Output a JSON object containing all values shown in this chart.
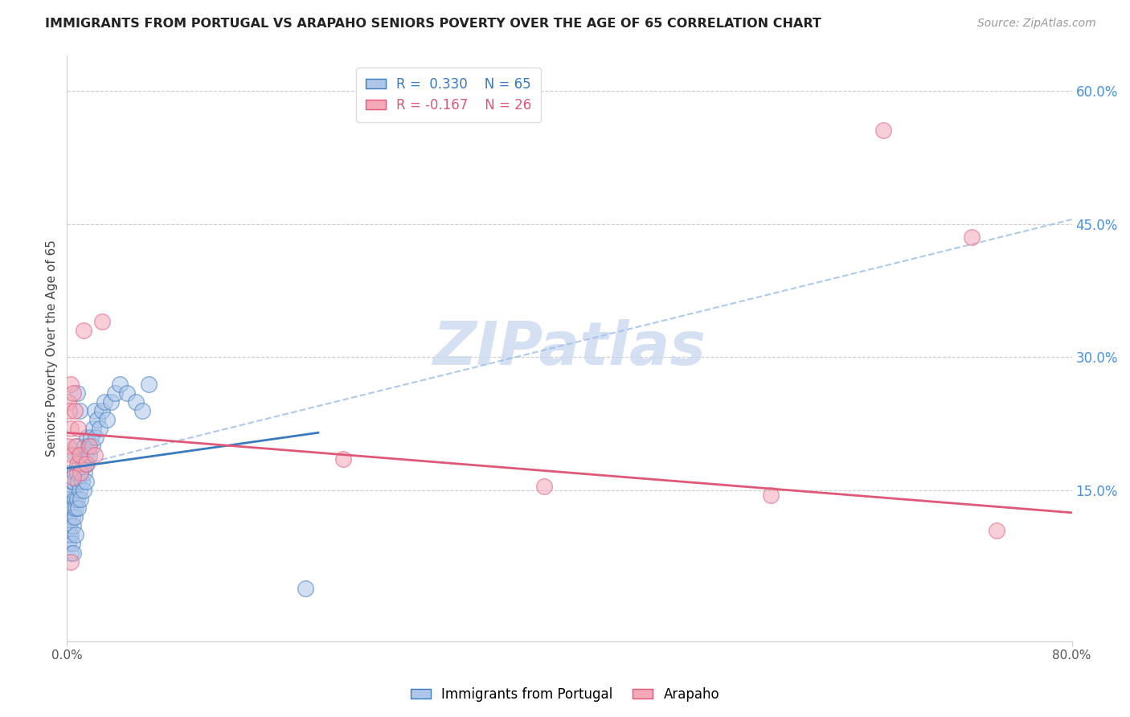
{
  "title": "IMMIGRANTS FROM PORTUGAL VS ARAPAHO SENIORS POVERTY OVER THE AGE OF 65 CORRELATION CHART",
  "source": "Source: ZipAtlas.com",
  "ylabel": "Seniors Poverty Over the Age of 65",
  "xlim": [
    0.0,
    0.8
  ],
  "ylim": [
    -0.02,
    0.64
  ],
  "series1_color": "#aec6e8",
  "series2_color": "#f4a8b8",
  "trendline1_color": "#3a7abf",
  "trendline2_color": "#e05878",
  "dash_color": "#a0c0e8",
  "watermark": "ZIPatlas",
  "watermark_color": "#c8d8f0",
  "legend1_label": "Immigrants from Portugal",
  "legend2_label": "Arapaho",
  "trendline1_x0": 0.0,
  "trendline1_y0": 0.175,
  "trendline1_x1": 0.2,
  "trendline1_y1": 0.215,
  "trendline2_x0": 0.0,
  "trendline2_y0": 0.215,
  "trendline2_x1": 0.8,
  "trendline2_y1": 0.125,
  "dashline_x0": 0.0,
  "dashline_y0": 0.175,
  "dashline_x1": 0.8,
  "dashline_y1": 0.455,
  "series1_x": [
    0.001,
    0.001,
    0.001,
    0.002,
    0.002,
    0.002,
    0.003,
    0.003,
    0.003,
    0.003,
    0.004,
    0.004,
    0.004,
    0.004,
    0.005,
    0.005,
    0.005,
    0.005,
    0.006,
    0.006,
    0.006,
    0.007,
    0.007,
    0.007,
    0.008,
    0.008,
    0.008,
    0.009,
    0.009,
    0.01,
    0.01,
    0.011,
    0.011,
    0.012,
    0.012,
    0.013,
    0.013,
    0.014,
    0.014,
    0.015,
    0.015,
    0.016,
    0.016,
    0.017,
    0.018,
    0.019,
    0.02,
    0.021,
    0.022,
    0.023,
    0.024,
    0.026,
    0.028,
    0.03,
    0.032,
    0.035,
    0.038,
    0.042,
    0.048,
    0.055,
    0.06,
    0.065,
    0.19,
    0.008,
    0.01
  ],
  "series1_y": [
    0.12,
    0.15,
    0.09,
    0.11,
    0.14,
    0.1,
    0.13,
    0.1,
    0.17,
    0.08,
    0.12,
    0.15,
    0.09,
    0.16,
    0.11,
    0.13,
    0.16,
    0.08,
    0.12,
    0.14,
    0.17,
    0.1,
    0.13,
    0.19,
    0.14,
    0.17,
    0.2,
    0.13,
    0.16,
    0.15,
    0.18,
    0.14,
    0.17,
    0.16,
    0.19,
    0.15,
    0.18,
    0.17,
    0.2,
    0.16,
    0.19,
    0.18,
    0.21,
    0.2,
    0.19,
    0.21,
    0.2,
    0.22,
    0.24,
    0.21,
    0.23,
    0.22,
    0.24,
    0.25,
    0.23,
    0.25,
    0.26,
    0.27,
    0.26,
    0.25,
    0.24,
    0.27,
    0.04,
    0.26,
    0.24
  ],
  "series2_x": [
    0.001,
    0.001,
    0.002,
    0.003,
    0.003,
    0.004,
    0.005,
    0.006,
    0.007,
    0.008,
    0.009,
    0.01,
    0.011,
    0.013,
    0.015,
    0.018,
    0.022,
    0.028,
    0.22,
    0.38,
    0.56,
    0.65,
    0.72,
    0.74,
    0.003,
    0.005
  ],
  "series2_y": [
    0.25,
    0.2,
    0.24,
    0.27,
    0.22,
    0.19,
    0.26,
    0.24,
    0.2,
    0.18,
    0.22,
    0.19,
    0.17,
    0.33,
    0.18,
    0.2,
    0.19,
    0.34,
    0.185,
    0.155,
    0.145,
    0.555,
    0.435,
    0.105,
    0.07,
    0.165
  ]
}
